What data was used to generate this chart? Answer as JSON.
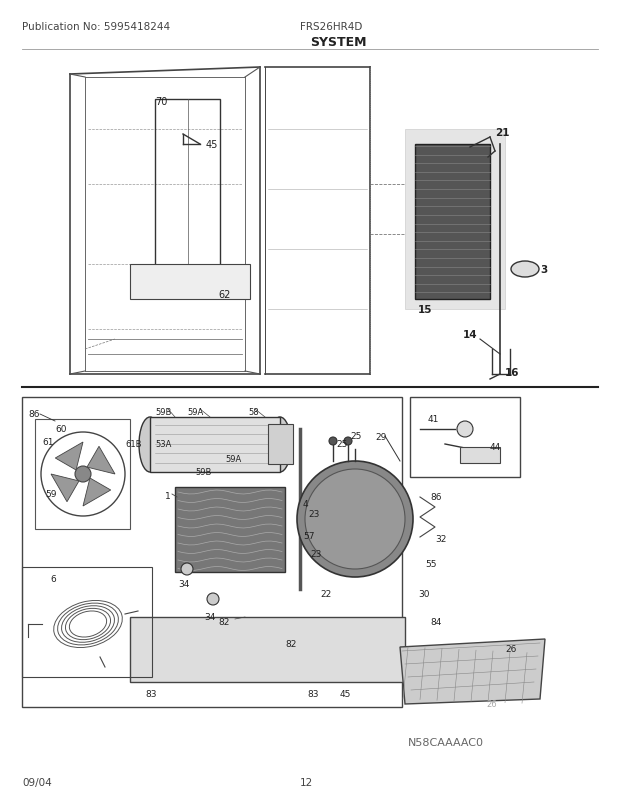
{
  "pub_no": "Publication No: 5995418244",
  "model": "FRS26HR4D",
  "section_title": "SYSTEM",
  "date_code": "09/04",
  "page_no": "12",
  "watermark": "N58CAAAAC0",
  "bg_color": "#ffffff",
  "fig_width": 6.2,
  "fig_height": 8.03,
  "dpi": 100
}
